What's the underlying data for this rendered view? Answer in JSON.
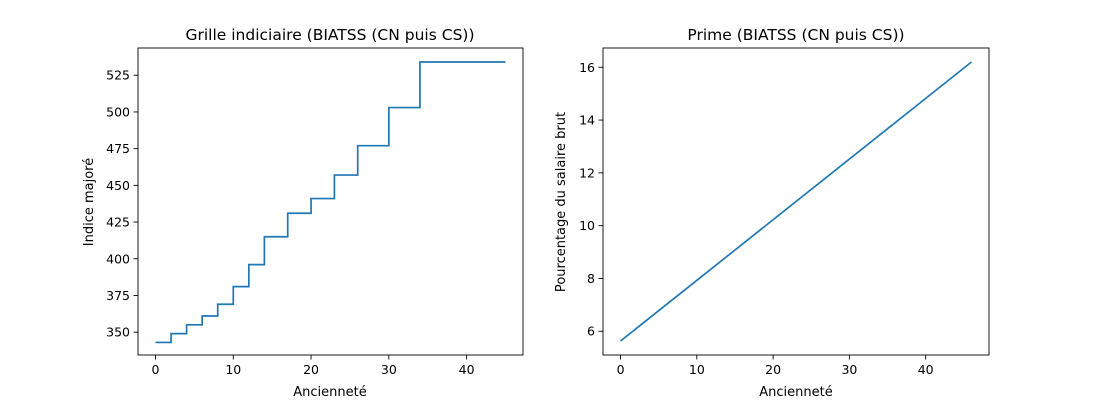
{
  "chart_data": [
    {
      "type": "line",
      "drawstyle": "steps-post",
      "title": "Grille indiciaire (BIATSS (CN puis CS))",
      "xlabel": "Ancienneté",
      "ylabel": "Indice majoré",
      "xlim": [
        -2.25,
        47.25
      ],
      "ylim": [
        334.45,
        543.55
      ],
      "xticks": [
        0,
        10,
        20,
        30,
        40
      ],
      "yticks": [
        350,
        375,
        400,
        425,
        450,
        475,
        500,
        525
      ],
      "color": "#1f77b4",
      "grid": false,
      "series": [
        {
          "x": [
            0,
            2,
            4,
            6,
            8,
            10,
            12,
            14,
            17,
            20,
            23,
            26,
            30,
            34,
            45
          ],
          "y": [
            343,
            349,
            355,
            361,
            369,
            381,
            396,
            415,
            431,
            441,
            457,
            477,
            503,
            534,
            534
          ]
        }
      ]
    },
    {
      "type": "line",
      "title": "Prime (BIATSS (CN puis CS))",
      "xlabel": "Ancienneté",
      "ylabel": "Pourcentage du salaire brut",
      "xlim": [
        -2.3,
        48.3
      ],
      "ylim": [
        5.1,
        16.73
      ],
      "xticks": [
        0,
        10,
        20,
        30,
        40
      ],
      "yticks": [
        6,
        8,
        10,
        12,
        14,
        16
      ],
      "color": "#1f77b4",
      "grid": false,
      "series": [
        {
          "x": [
            0,
            46
          ],
          "y": [
            5.63,
            16.2
          ]
        }
      ]
    }
  ]
}
